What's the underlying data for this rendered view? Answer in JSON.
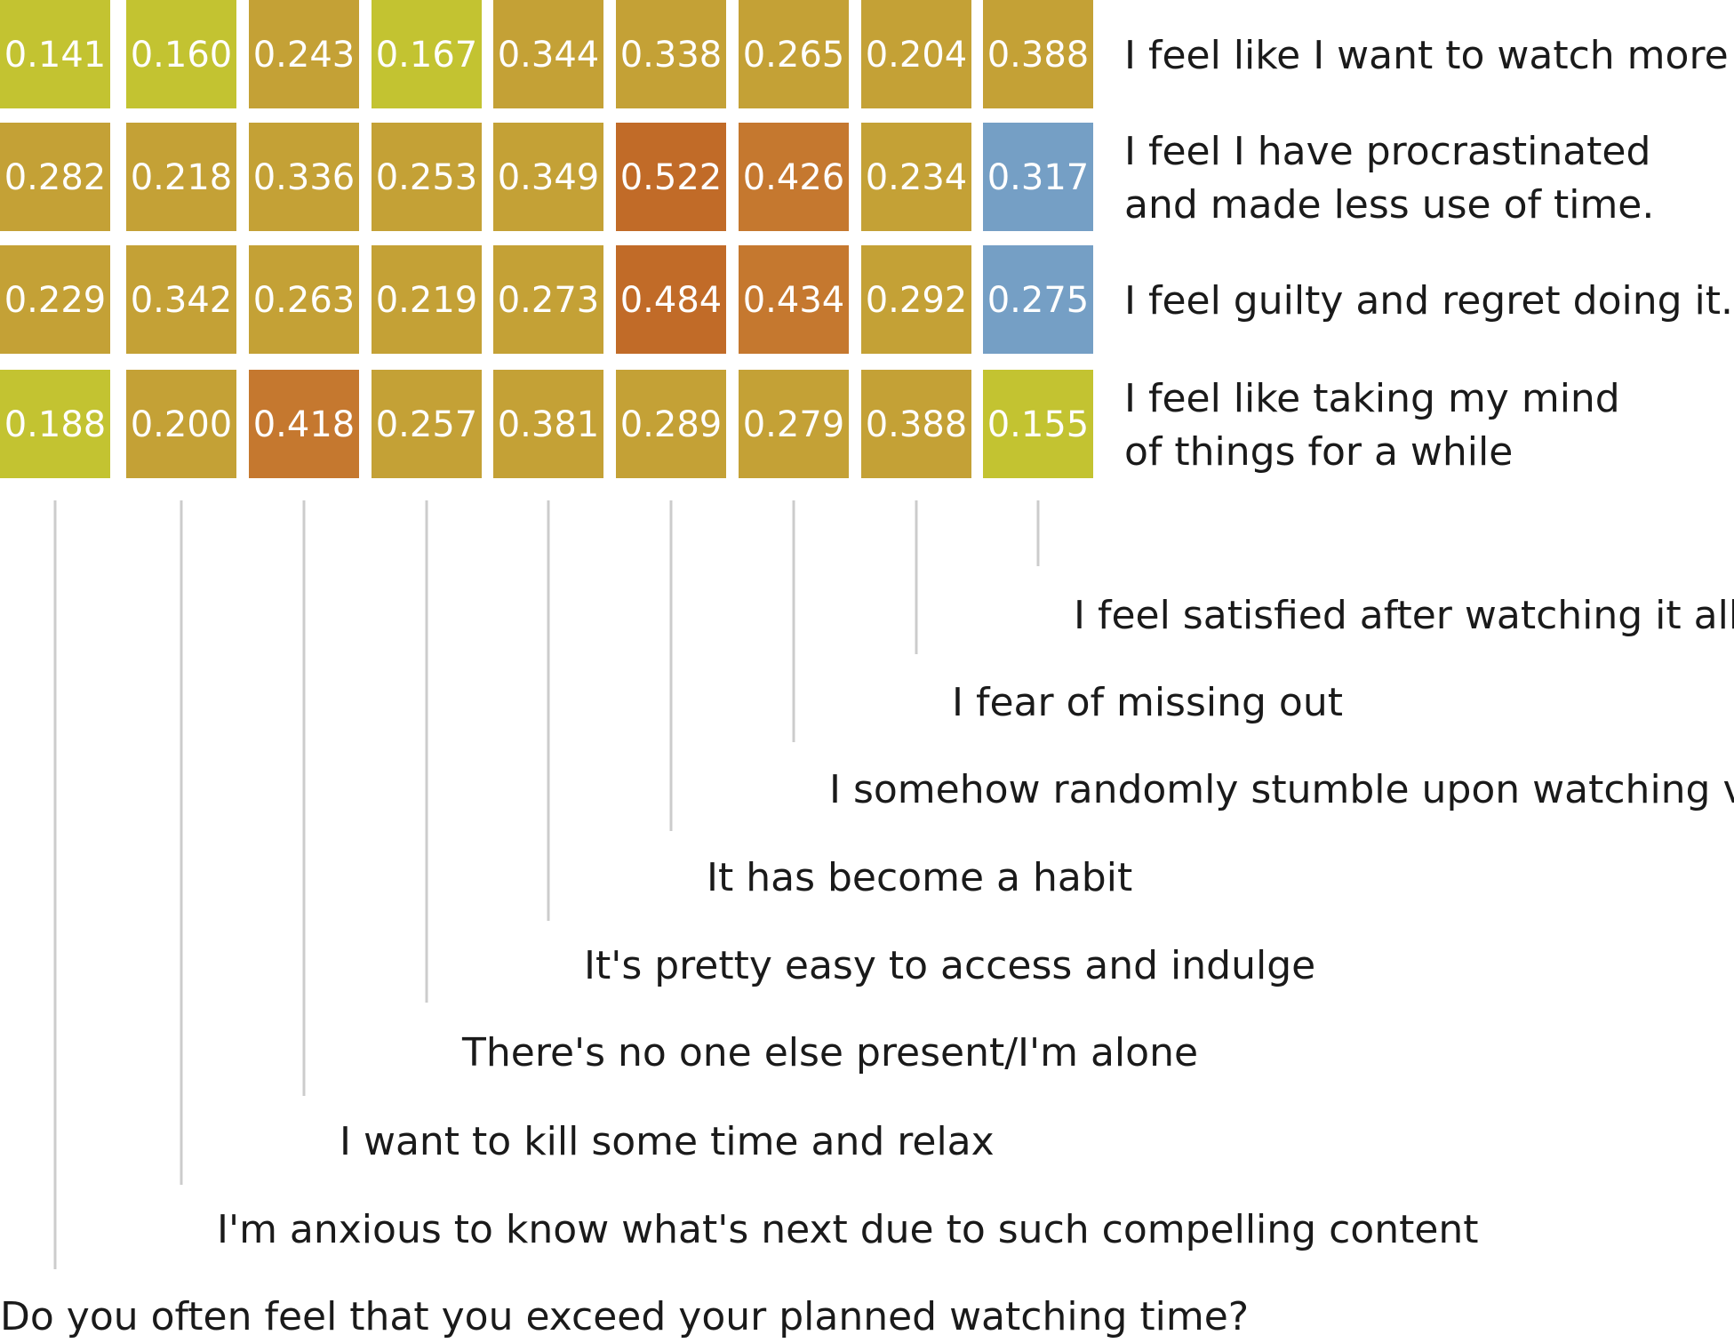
{
  "chart_data": {
    "type": "heatmap",
    "columns": [
      "Do you often feel that you exceed your planned watching time?",
      "I'm anxious to know what's next due to such compelling content",
      "I want to kill some time and relax",
      "There's no one else present/I'm alone",
      "It's pretty easy to access and indulge",
      "It has become a habit",
      "I somehow randomly stumble upon watching videos",
      "I fear of missing out",
      "I feel satisfied after watching it all"
    ],
    "rows": [
      {
        "label_lines": [
          "I feel like I want to watch more"
        ],
        "values": [
          "0.141",
          "0.160",
          "0.243",
          "0.167",
          "0.344",
          "0.338",
          "0.265",
          "0.204",
          "0.388"
        ]
      },
      {
        "label_lines": [
          "I feel I have procrastinated",
          "and made less use of time."
        ],
        "values": [
          "0.282",
          "0.218",
          "0.336",
          "0.253",
          "0.349",
          "0.522",
          "0.426",
          "0.234",
          "0.317"
        ]
      },
      {
        "label_lines": [
          "I feel guilty and regret doing it."
        ],
        "values": [
          "0.229",
          "0.342",
          "0.263",
          "0.219",
          "0.273",
          "0.484",
          "0.434",
          "0.292",
          "0.275"
        ]
      },
      {
        "label_lines": [
          "I feel like taking my mind",
          "of things for a while"
        ],
        "values": [
          "0.188",
          "0.200",
          "0.418",
          "0.257",
          "0.381",
          "0.289",
          "0.279",
          "0.388",
          "0.155"
        ]
      }
    ],
    "negative_cells": [
      [
        1,
        8
      ],
      [
        2,
        8
      ]
    ],
    "colors": {
      "low": "#c3c331",
      "mid": "#c4a136",
      "high": "#c5782f",
      "higher": "#c16b28",
      "negative": "#759fc5",
      "leader": "#cccccc"
    }
  }
}
